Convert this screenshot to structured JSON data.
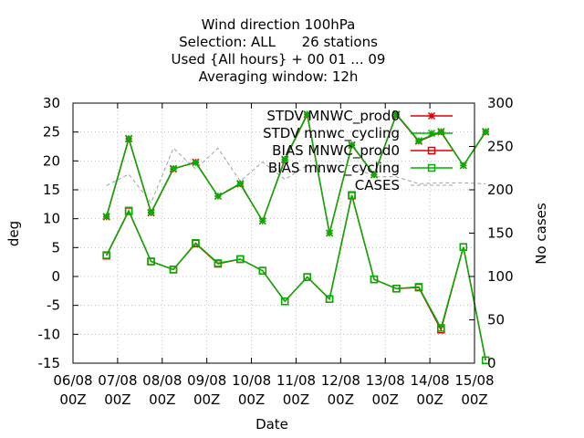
{
  "chart_data": {
    "type": "line",
    "title_lines": [
      "Wind direction 100hPa",
      "Selection: ALL      26 stations",
      "Used {All hours} + 00 01 ... 09",
      "Averaging window: 12h"
    ],
    "xlabel": "Date",
    "ylabel": "deg",
    "y2label": "No cases",
    "xlim": [
      0,
      9
    ],
    "ylim": [
      -15,
      30
    ],
    "y2lim": [
      0,
      300
    ],
    "xticks": [
      {
        "x": 0,
        "line1": "06/08",
        "line2": "00Z"
      },
      {
        "x": 1,
        "line1": "07/08",
        "line2": "00Z"
      },
      {
        "x": 2,
        "line1": "08/08",
        "line2": "00Z"
      },
      {
        "x": 3,
        "line1": "09/08",
        "line2": "00Z"
      },
      {
        "x": 4,
        "line1": "10/08",
        "line2": "00Z"
      },
      {
        "x": 5,
        "line1": "11/08",
        "line2": "00Z"
      },
      {
        "x": 6,
        "line1": "12/08",
        "line2": "00Z"
      },
      {
        "x": 7,
        "line1": "13/08",
        "line2": "00Z"
      },
      {
        "x": 8,
        "line1": "14/08",
        "line2": "00Z"
      },
      {
        "x": 9,
        "line1": "15/08",
        "line2": "00Z"
      }
    ],
    "yticks": [
      -15,
      -10,
      -5,
      0,
      5,
      10,
      15,
      20,
      25,
      30
    ],
    "y2ticks": [
      0,
      50,
      100,
      150,
      200,
      250,
      300
    ],
    "grid": true,
    "legend_position": "top-right",
    "x": [
      0.75,
      1.25,
      1.75,
      2.25,
      2.75,
      3.25,
      3.75,
      4.25,
      4.75,
      5.25,
      5.75,
      6.25,
      6.75,
      7.25,
      7.75,
      8.25,
      8.75,
      9.25
    ],
    "series": [
      {
        "name": "STDV MNWC_prod0",
        "axis": "y",
        "color": "#e00000",
        "marker": "star",
        "values": [
          10.3,
          23.8,
          11.0,
          18.6,
          19.8,
          13.9,
          16.0,
          9.6,
          20.2,
          28.0,
          7.5,
          22.7,
          17.6,
          28.0,
          23.4,
          25.0,
          19.2,
          25.0
        ]
      },
      {
        "name": "STDV mnwc_cycling",
        "axis": "y",
        "color": "#00b000",
        "marker": "star",
        "values": [
          10.4,
          23.9,
          11.1,
          18.7,
          19.7,
          13.9,
          16.1,
          9.6,
          20.3,
          28.1,
          7.5,
          22.8,
          17.6,
          28.1,
          23.5,
          25.1,
          19.2,
          25.1
        ]
      },
      {
        "name": "BIAS MNWC_prod0",
        "axis": "y",
        "color": "#e00000",
        "marker": "square",
        "values": [
          3.6,
          11.3,
          2.6,
          1.2,
          5.7,
          2.2,
          3.0,
          1.0,
          -4.3,
          -0.1,
          -3.9,
          14.0,
          -0.5,
          -2.1,
          -1.9,
          -9.2,
          5.1,
          -14.5
        ]
      },
      {
        "name": "BIAS mnwc_cycling",
        "axis": "y",
        "color": "#00b000",
        "marker": "square",
        "values": [
          3.7,
          11.4,
          2.6,
          1.2,
          5.8,
          2.3,
          3.0,
          1.0,
          -4.3,
          -0.1,
          -3.9,
          14.1,
          -0.5,
          -2.1,
          -1.8,
          -8.9,
          5.1,
          -14.5
        ]
      },
      {
        "name": "CASES",
        "axis": "y2",
        "color": "#a0a0a0",
        "marker": "none",
        "dashed": true,
        "values": [
          205,
          218,
          185,
          248,
          224,
          248,
          210,
          232,
          212,
          228,
          228,
          228,
          215,
          215,
          207,
          208,
          208,
          207
        ]
      }
    ]
  }
}
